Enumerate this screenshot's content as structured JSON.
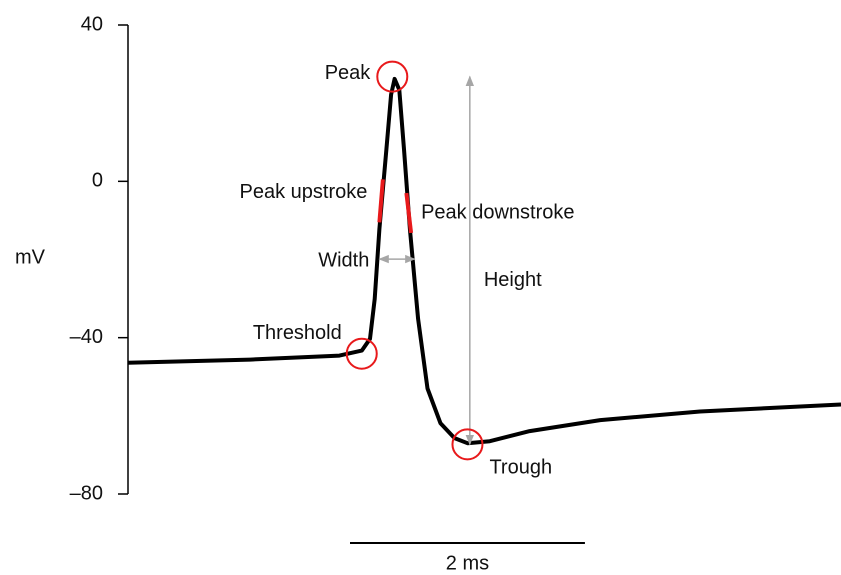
{
  "chart_data": {
    "type": "line",
    "ylabel": "mV",
    "ylim": [
      -80,
      40
    ],
    "yticks": [
      40,
      0,
      {
        "value": -40,
        "label": "–40"
      },
      {
        "value": -80,
        "label": "–80"
      }
    ],
    "xlim": [
      0,
      6.07
    ],
    "color": "#000000",
    "x": [
      0,
      1.04,
      1.8,
      1.99,
      2.06,
      2.1,
      2.14,
      2.2,
      2.24,
      2.27,
      2.31,
      2.35,
      2.4,
      2.47,
      2.55,
      2.66,
      2.78,
      2.89,
      3.08,
      3.42,
      4.02,
      4.87,
      6.07
    ],
    "values": [
      -46.4,
      -45.6,
      -44.6,
      -43.3,
      -40.3,
      -30.1,
      -12.2,
      8.2,
      22.2,
      26.2,
      23.4,
      8.2,
      -12.2,
      -35.2,
      -53.0,
      -61.9,
      -65.7,
      -67.0,
      -66.5,
      -63.9,
      -61.1,
      -58.9,
      -57.1
    ],
    "marker_color": "#e8191b",
    "annotations": [
      {
        "label": "Peak",
        "x": 2.25,
        "y": 26.8
      },
      {
        "label": "Threshold",
        "x": 1.99,
        "y": -44.1
      },
      {
        "label": "Trough",
        "x": 2.89,
        "y": -67.3
      }
    ],
    "upstroke": {
      "label": "Peak upstroke",
      "x": [
        2.14,
        2.17
      ],
      "y": [
        -10.5,
        0.5
      ]
    },
    "downstroke": {
      "label": "Peak downstroke",
      "x": [
        2.37,
        2.41
      ],
      "y": [
        -3.0,
        -13.2
      ]
    },
    "width": {
      "label": "Width",
      "x": [
        2.14,
        2.44
      ],
      "y": -19.9
    },
    "height": {
      "label": "Height",
      "x": 2.91,
      "y": [
        -67.3,
        26.8
      ]
    },
    "scalebar": {
      "value": 2,
      "label": "2 ms"
    }
  }
}
